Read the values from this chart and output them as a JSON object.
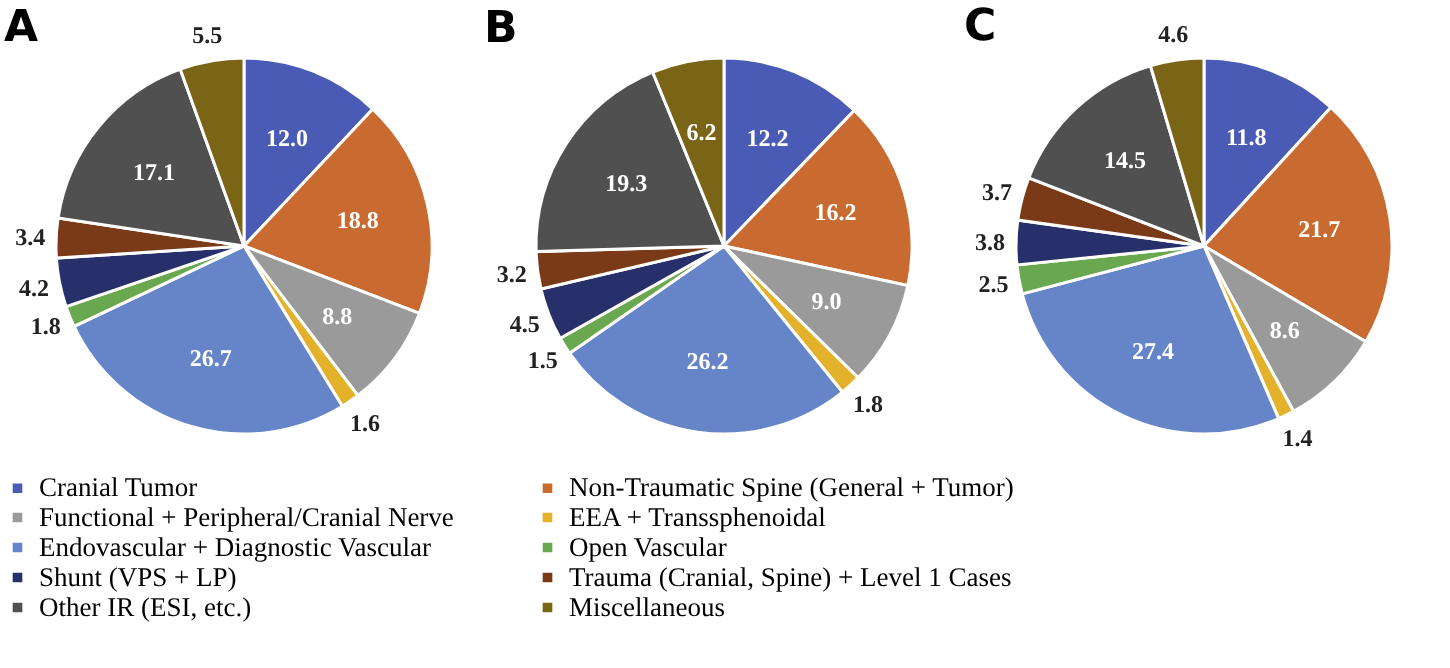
{
  "chart_data": [
    {
      "type": "pie",
      "title": "A",
      "legend": "bottom",
      "categories": [
        "Cranial Tumor",
        "Non-Traumatic Spine (General + Tumor)",
        "Functional + Peripheral/Cranial Nerve",
        "EEA + Transsphenoidal",
        "Endovascular + Diagnostic Vascular",
        "Open Vascular",
        "Shunt (VPS + LP)",
        "Trauma (Cranial, Spine) + Level 1 Cases",
        "Other IR (ESI, etc.)",
        "Miscellaneous"
      ],
      "values": [
        12.0,
        18.8,
        8.8,
        1.6,
        26.7,
        1.8,
        4.2,
        3.4,
        17.1,
        5.5
      ],
      "value_labels": [
        "12.0",
        "18.8",
        "8.8",
        "1.6",
        "26.7",
        "1.8",
        "4.2",
        "3.4",
        "17.1",
        "5.5"
      ],
      "colors": [
        "#4a5bb5",
        "#c96b30",
        "#9a9a9a",
        "#e3b12a",
        "#6585c8",
        "#6aa84f",
        "#27306a",
        "#7b3a17",
        "#505050",
        "#7a6416"
      ]
    },
    {
      "type": "pie",
      "title": "B",
      "categories": [
        null,
        null,
        null,
        null,
        null,
        null,
        null,
        null,
        null,
        null
      ],
      "values": [
        12.2,
        16.2,
        9.0,
        1.8,
        26.2,
        1.5,
        4.5,
        3.2,
        19.3,
        6.2
      ],
      "value_labels": [
        "12.2",
        "16.2",
        "9.0",
        "1.8",
        "26.2",
        "1.5",
        "4.5",
        "3.2",
        "19.3",
        "6.2"
      ],
      "colors": [
        "#4a5bb5",
        "#c96b30",
        "#9a9a9a",
        "#e3b12a",
        "#6585c8",
        "#6aa84f",
        "#27306a",
        "#7b3a17",
        "#505050",
        "#7a6416"
      ]
    },
    {
      "type": "pie",
      "title": "C",
      "categories": [
        null,
        null,
        null,
        null,
        null,
        null,
        null,
        null,
        null,
        null
      ],
      "values": [
        11.8,
        21.7,
        8.6,
        1.4,
        27.4,
        2.5,
        3.8,
        3.7,
        14.5,
        4.6
      ],
      "value_labels": [
        "11.8",
        "21.7",
        "8.6",
        "1.4",
        "27.4",
        "2.5",
        "3.8",
        "3.7",
        "14.5",
        "4.6"
      ],
      "colors": [
        "#4a5bb5",
        "#c96b30",
        "#9a9a9a",
        "#e3b12a",
        "#6585c8",
        "#6aa84f",
        "#27306a",
        "#7b3a17",
        "#505050",
        "#7a6416"
      ]
    }
  ]
}
